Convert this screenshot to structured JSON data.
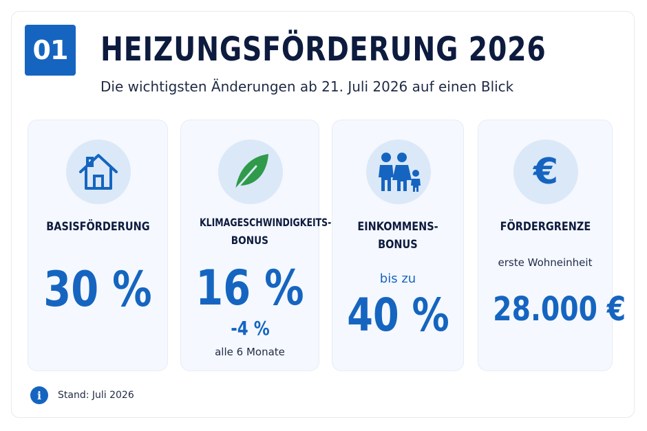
{
  "header": {
    "number": "01",
    "title": "HEIZUNGSFÖRDERUNG 2026",
    "subtitle": "Die wichtigsten Änderungen ab 21. Juli 2026 auf einen Blick"
  },
  "cards": [
    {
      "icon": "house-icon",
      "label": "BASISFÖRDERUNG",
      "value": "30 %"
    },
    {
      "icon": "leaf-icon",
      "label_line1": "KLIMAGESCHWINDIGKEITS-",
      "label_line2": "BONUS",
      "value": "16 %",
      "change": "-4 %",
      "note": "alle 6 Monate"
    },
    {
      "icon": "family-icon",
      "label_line1": "EINKOMMENS-",
      "label_line2": "BONUS",
      "prefix": "bis zu",
      "value": "40 %"
    },
    {
      "icon": "euro-icon",
      "label": "FÖRDERGRENZE",
      "note": "erste Wohneinheit",
      "value": "28.000 €"
    }
  ],
  "footer": {
    "text": "Stand: Juli 2026"
  },
  "colors": {
    "accent": "#1565c0",
    "leaf": "#2e9a4a",
    "title": "#0d1b3e",
    "card_bg": "#f5f8fe",
    "icon_bg": "#dbe8f8"
  }
}
